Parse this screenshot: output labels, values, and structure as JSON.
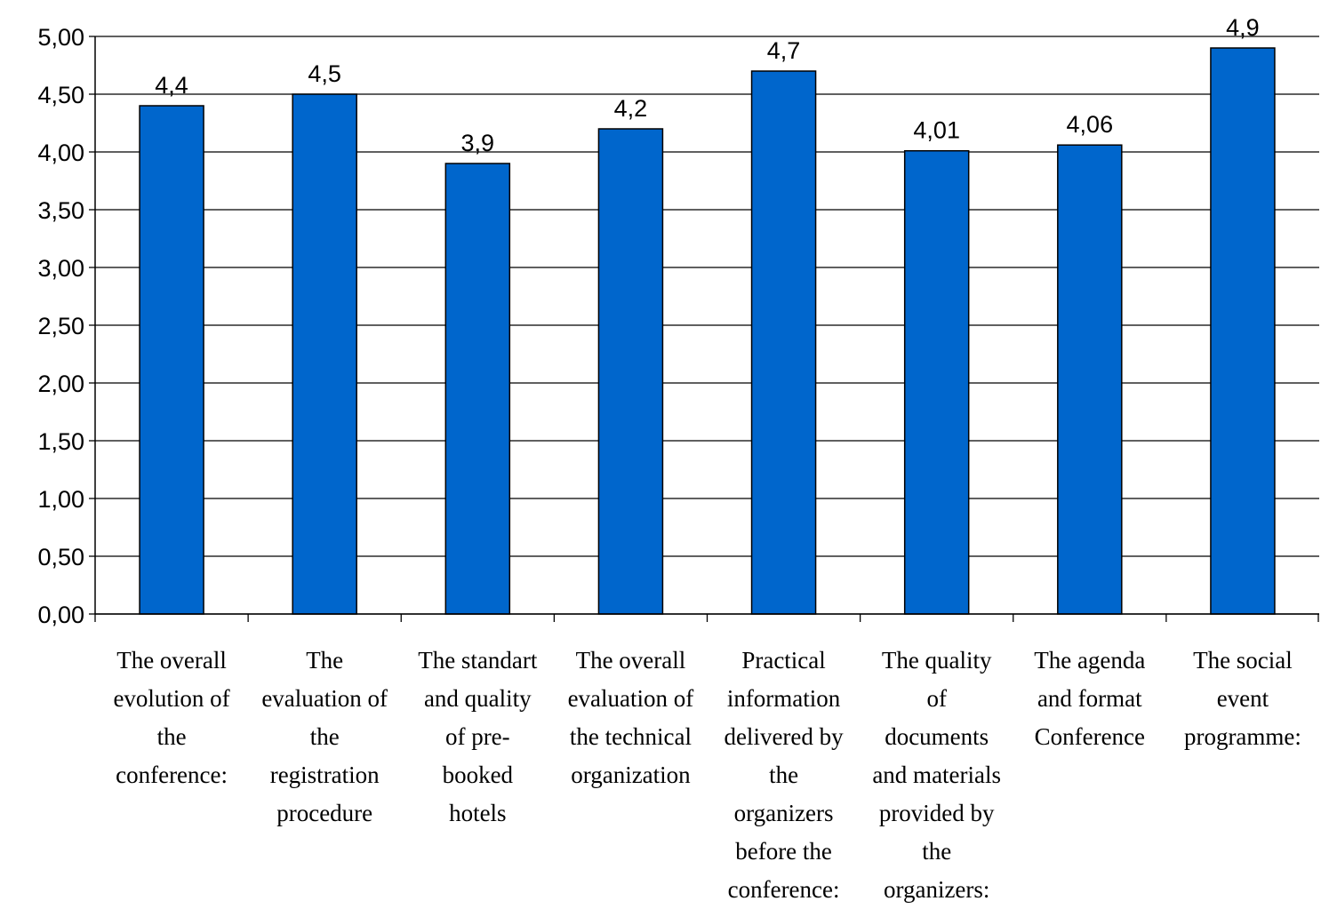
{
  "chart_data": {
    "type": "bar",
    "categories": [
      "The overall evolution of the conference:",
      "The evaluation of the registration procedure",
      "The standart and quality of pre-booked hotels",
      "The overall evaluation of the technical organization",
      "Practical information delivered by the organizers before the conference:",
      "The quality of documents and materials provided by the organizers:",
      "The agenda and format Conference",
      "The social event programme:"
    ],
    "category_lines": [
      [
        "The overall",
        "evolution of",
        "the",
        "conference:"
      ],
      [
        "The",
        "evaluation of",
        "the",
        "registration",
        "procedure"
      ],
      [
        "The standart",
        "and quality",
        "of pre-",
        "booked",
        "hotels"
      ],
      [
        "The overall",
        "evaluation of",
        "the technical",
        "organization"
      ],
      [
        "Practical",
        "information",
        "delivered by",
        "the",
        "organizers",
        "before the",
        "conference:"
      ],
      [
        "The quality",
        "of",
        "documents",
        "and materials",
        "provided by",
        "the",
        "organizers:"
      ],
      [
        "The agenda",
        "and format",
        "Conference"
      ],
      [
        "The social",
        "event",
        "programme:"
      ]
    ],
    "values": [
      4.4,
      4.5,
      3.9,
      4.2,
      4.7,
      4.01,
      4.06,
      4.9
    ],
    "data_labels": [
      "4,4",
      "4,5",
      "3,9",
      "4,2",
      "4,7",
      "4,01",
      "4,06",
      "4,9"
    ],
    "y_ticks": [
      0,
      0.5,
      1,
      1.5,
      2,
      2.5,
      3,
      3.5,
      4,
      4.5,
      5
    ],
    "y_tick_labels": [
      "0,00",
      "0,50",
      "1,00",
      "1,50",
      "2,00",
      "2,50",
      "3,00",
      "3,50",
      "4,00",
      "4,50",
      "5,00"
    ],
    "ylim": [
      0,
      5
    ],
    "grid": true,
    "bar_color": "#0066CC",
    "title": "",
    "xlabel": "",
    "ylabel": ""
  }
}
